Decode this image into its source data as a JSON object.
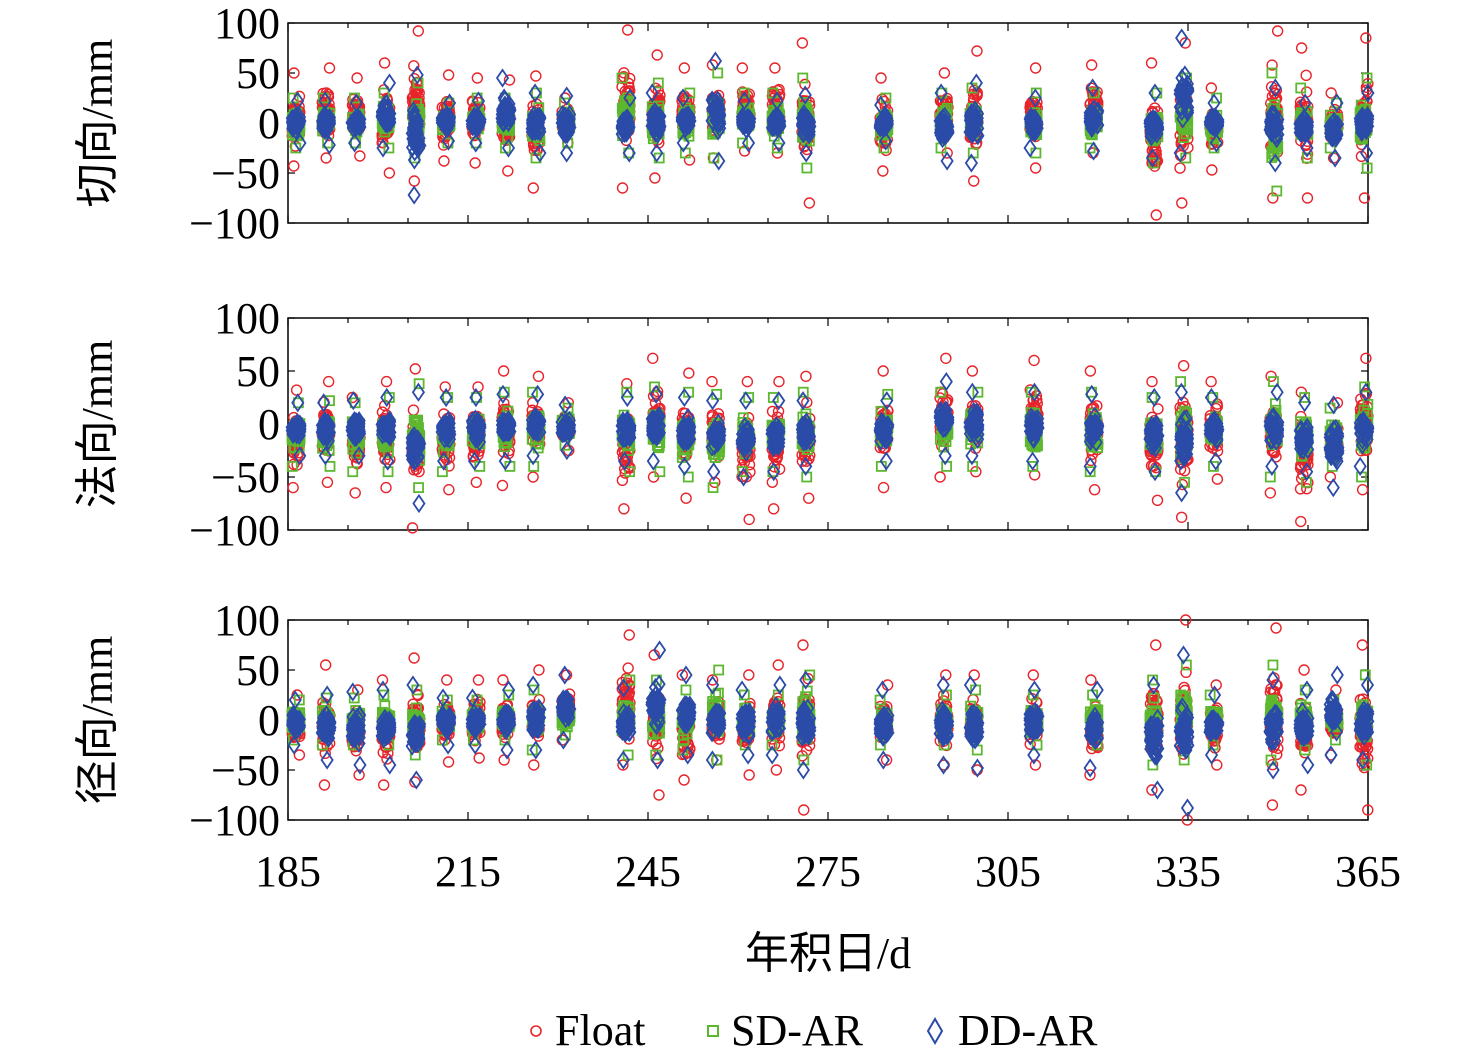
{
  "chart_data": [
    {
      "type": "scatter",
      "panel": "tangential",
      "ylabel": "切向/mm",
      "xlim": [
        185,
        365
      ],
      "ylim": [
        -100,
        100
      ],
      "yticks": [
        100,
        50,
        0,
        -50,
        -100
      ],
      "ytick_labels": [
        "100",
        "50",
        "0",
        "−50",
        "−100"
      ],
      "days": [
        186,
        191,
        196,
        201,
        206,
        211,
        216,
        221,
        226,
        231,
        241,
        246,
        251,
        256,
        261,
        266,
        271,
        284,
        294,
        299,
        309,
        319,
        329,
        334,
        339,
        349,
        354,
        359,
        364
      ],
      "series": [
        {
          "name": "Float",
          "min": [
            -43,
            -35,
            -33,
            -50,
            -58,
            -38,
            -40,
            -48,
            -65,
            -20,
            -65,
            -55,
            -37,
            -35,
            -28,
            -30,
            -80,
            -48,
            -30,
            -58,
            -45,
            -30,
            -92,
            -80,
            -47,
            -75,
            -75,
            -35,
            -75
          ],
          "max": [
            50,
            55,
            45,
            60,
            92,
            48,
            45,
            43,
            47,
            25,
            93,
            68,
            55,
            58,
            55,
            55,
            80,
            45,
            50,
            72,
            55,
            58,
            60,
            80,
            35,
            92,
            75,
            30,
            85
          ]
        },
        {
          "name": "SD-AR",
          "min": [
            -25,
            -20,
            -20,
            -25,
            -35,
            -20,
            -20,
            -25,
            -35,
            -20,
            -30,
            -35,
            -30,
            -35,
            -20,
            -25,
            -45,
            -25,
            -25,
            -30,
            -30,
            -25,
            -40,
            -35,
            -25,
            -68,
            -35,
            -25,
            -45
          ],
          "max": [
            25,
            25,
            25,
            30,
            40,
            20,
            25,
            25,
            30,
            20,
            45,
            40,
            30,
            50,
            30,
            30,
            45,
            25,
            30,
            35,
            30,
            30,
            30,
            45,
            25,
            50,
            35,
            20,
            45
          ]
        },
        {
          "name": "DD-AR",
          "min": [
            -20,
            -22,
            -20,
            -25,
            -72,
            -18,
            -20,
            -25,
            -30,
            -30,
            -30,
            -30,
            -20,
            -38,
            -20,
            -20,
            -30,
            -18,
            -38,
            -40,
            -25,
            -28,
            -35,
            -30,
            -20,
            -40,
            -25,
            -35,
            -30
          ],
          "max": [
            22,
            22,
            20,
            40,
            48,
            20,
            22,
            45,
            30,
            27,
            25,
            30,
            25,
            62,
            22,
            22,
            28,
            18,
            30,
            40,
            25,
            35,
            30,
            85,
            20,
            35,
            20,
            20,
            30
          ]
        }
      ]
    },
    {
      "type": "scatter",
      "panel": "normal",
      "ylabel": "法向/mm",
      "xlim": [
        185,
        365
      ],
      "ylim": [
        -100,
        100
      ],
      "yticks": [
        100,
        50,
        0,
        -50,
        -100
      ],
      "ytick_labels": [
        "100",
        "50",
        "0",
        "−50",
        "−100"
      ],
      "days": [
        186,
        191,
        196,
        201,
        206,
        211,
        216,
        221,
        226,
        231,
        241,
        246,
        251,
        256,
        261,
        266,
        271,
        284,
        294,
        299,
        309,
        319,
        329,
        334,
        339,
        349,
        354,
        359,
        364
      ],
      "series": [
        {
          "name": "Float",
          "min": [
            -60,
            -55,
            -65,
            -60,
            -98,
            -62,
            -55,
            -58,
            -50,
            -25,
            -80,
            -50,
            -70,
            -55,
            -90,
            -80,
            -70,
            -60,
            -50,
            -45,
            -48,
            -62,
            -72,
            -88,
            -52,
            -65,
            -92,
            -50,
            -62
          ],
          "max": [
            32,
            40,
            25,
            40,
            52,
            35,
            35,
            50,
            45,
            20,
            38,
            62,
            48,
            40,
            40,
            40,
            45,
            50,
            62,
            50,
            60,
            50,
            40,
            55,
            40,
            45,
            30,
            20,
            62
          ]
        },
        {
          "name": "SD-AR",
          "min": [
            -40,
            -40,
            -45,
            -45,
            -60,
            -45,
            -40,
            -40,
            -40,
            -20,
            -45,
            -45,
            -50,
            -60,
            -45,
            -45,
            -50,
            -40,
            -40,
            -40,
            -40,
            -45,
            -45,
            -55,
            -40,
            -50,
            -55,
            -40,
            -50
          ],
          "max": [
            20,
            22,
            20,
            25,
            38,
            25,
            25,
            30,
            30,
            15,
            30,
            35,
            30,
            28,
            25,
            25,
            30,
            28,
            30,
            30,
            30,
            30,
            25,
            40,
            25,
            40,
            25,
            15,
            35
          ]
        },
        {
          "name": "DD-AR",
          "min": [
            -30,
            -30,
            -30,
            -35,
            -75,
            -35,
            -35,
            -35,
            -30,
            -25,
            -35,
            -35,
            -40,
            -45,
            -50,
            -45,
            -40,
            -35,
            -30,
            -30,
            -35,
            -40,
            -45,
            -65,
            -35,
            -40,
            -45,
            -60,
            -40
          ],
          "max": [
            20,
            20,
            22,
            25,
            30,
            25,
            25,
            28,
            28,
            18,
            25,
            28,
            25,
            22,
            22,
            22,
            22,
            22,
            40,
            30,
            30,
            28,
            25,
            30,
            25,
            30,
            20,
            18,
            30
          ]
        }
      ]
    },
    {
      "type": "scatter",
      "panel": "radial",
      "ylabel": "径向/mm",
      "xlim": [
        185,
        365
      ],
      "ylim": [
        -100,
        100
      ],
      "yticks": [
        100,
        50,
        0,
        -50,
        -100
      ],
      "ytick_labels": [
        "100",
        "50",
        "0",
        "−50",
        "−100"
      ],
      "xticks": [
        185,
        215,
        245,
        275,
        305,
        335,
        365
      ],
      "xtick_labels": [
        "185",
        "215",
        "245",
        "275",
        "305",
        "335",
        "365"
      ],
      "xlabel": "年积日/d",
      "days": [
        186,
        191,
        196,
        201,
        206,
        211,
        216,
        221,
        226,
        231,
        241,
        246,
        251,
        256,
        261,
        266,
        271,
        284,
        294,
        299,
        309,
        319,
        329,
        334,
        339,
        349,
        354,
        359,
        364
      ],
      "series": [
        {
          "name": "Float",
          "min": [
            -35,
            -65,
            -55,
            -65,
            -62,
            -42,
            -38,
            -40,
            -45,
            -20,
            -45,
            -75,
            -60,
            -40,
            -55,
            -50,
            -90,
            -40,
            -45,
            -50,
            -45,
            -55,
            -70,
            -100,
            -45,
            -85,
            -70,
            -35,
            -90
          ],
          "max": [
            25,
            55,
            30,
            40,
            62,
            40,
            40,
            40,
            50,
            45,
            85,
            65,
            45,
            40,
            45,
            55,
            75,
            35,
            45,
            45,
            45,
            40,
            75,
            100,
            35,
            92,
            50,
            30,
            75
          ]
        },
        {
          "name": "SD-AR",
          "min": [
            -20,
            -25,
            -25,
            -25,
            -35,
            -20,
            -20,
            -20,
            -30,
            -15,
            -35,
            -35,
            -30,
            -40,
            -25,
            -25,
            -40,
            -25,
            -25,
            -30,
            -25,
            -25,
            -45,
            -40,
            -25,
            -40,
            -30,
            -20,
            -45
          ],
          "max": [
            20,
            22,
            22,
            25,
            30,
            20,
            20,
            25,
            30,
            15,
            40,
            40,
            30,
            50,
            25,
            25,
            45,
            20,
            25,
            30,
            25,
            25,
            40,
            55,
            25,
            55,
            30,
            20,
            45
          ]
        },
        {
          "name": "DD-AR",
          "min": [
            -25,
            -40,
            -45,
            -45,
            -60,
            -25,
            -25,
            -30,
            -30,
            -20,
            -40,
            -40,
            -35,
            -40,
            -35,
            -35,
            -50,
            -40,
            -45,
            -48,
            -35,
            -48,
            -70,
            -88,
            -35,
            -50,
            -45,
            -35,
            -40
          ],
          "max": [
            20,
            25,
            28,
            30,
            35,
            22,
            22,
            30,
            35,
            45,
            32,
            70,
            45,
            35,
            30,
            35,
            40,
            30,
            35,
            35,
            30,
            30,
            35,
            65,
            25,
            40,
            30,
            45,
            35
          ]
        }
      ]
    }
  ],
  "legend": [
    {
      "label": "Float",
      "marker": "circle",
      "color": "#e8242b"
    },
    {
      "label": "SD-AR",
      "marker": "square",
      "color": "#5cb82e"
    },
    {
      "label": "DD-AR",
      "marker": "diamond",
      "color": "#2b4ba8"
    }
  ]
}
